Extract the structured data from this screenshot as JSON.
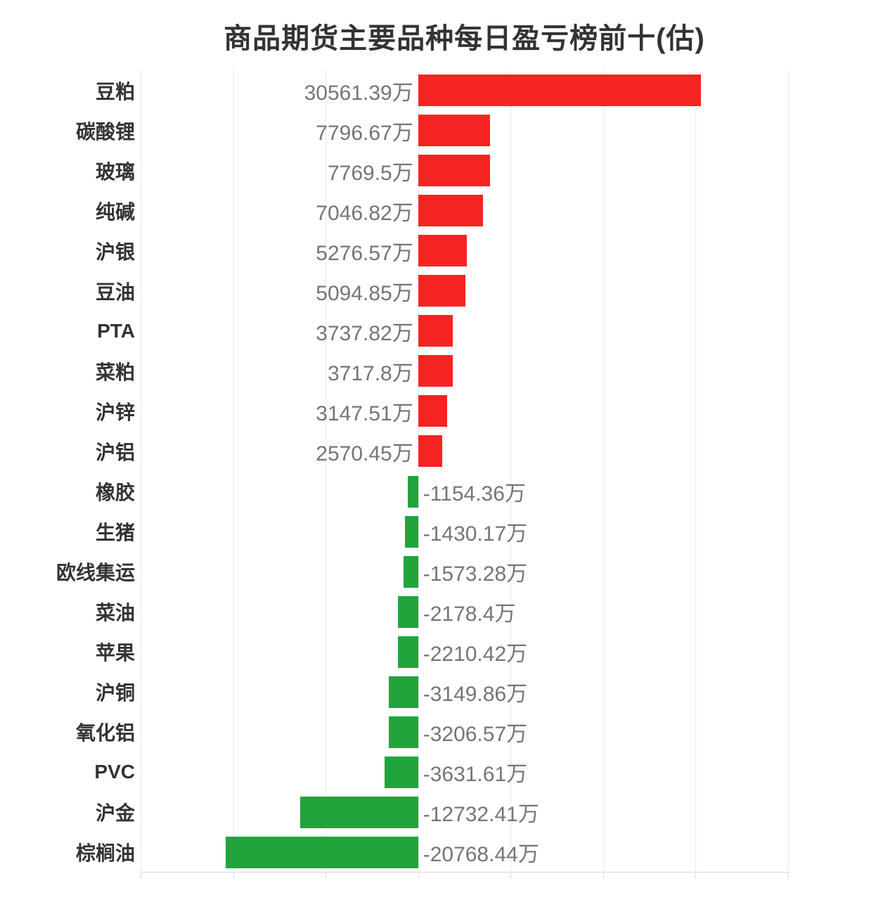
{
  "title": "商品期货主要品种每日盈亏榜前十(估)",
  "colors": {
    "positive_bar": "#f62323",
    "negative_bar": "#21a43c",
    "gridline": "#e9e9e9",
    "axis": "#d9d9d9",
    "category_label": "#333333",
    "value_label": "#757575",
    "title": "#333333",
    "background": "#ffffff"
  },
  "chart_data": {
    "type": "bar",
    "orientation": "horizontal",
    "title": "商品期货主要品种每日盈亏榜前十(估)",
    "unit": "万",
    "xlim": [
      -30000,
      40000
    ],
    "grid_interval": 10000,
    "grid": true,
    "x_axis_labels_visible": false,
    "categories": [
      "豆粕",
      "碳酸锂",
      "玻璃",
      "纯碱",
      "沪银",
      "豆油",
      "PTA",
      "菜粕",
      "沪锌",
      "沪铝",
      "橡胶",
      "生猪",
      "欧线集运",
      "菜油",
      "苹果",
      "沪铜",
      "氧化铝",
      "PVC",
      "沪金",
      "棕榈油"
    ],
    "values": [
      30561.39,
      7796.67,
      7769.5,
      7046.82,
      5276.57,
      5094.85,
      3737.82,
      3717.8,
      3147.51,
      2570.45,
      -1154.36,
      -1430.17,
      -1573.28,
      -2178.4,
      -2210.42,
      -3149.86,
      -3206.57,
      -3631.61,
      -12732.41,
      -20768.44
    ],
    "value_labels": [
      "30561.39万",
      "7796.67万",
      "7769.5万",
      "7046.82万",
      "5276.57万",
      "5094.85万",
      "3737.82万",
      "3717.8万",
      "3147.51万",
      "2570.45万",
      "-1154.36万",
      "-1430.17万",
      "-1573.28万",
      "-2178.4万",
      "-2210.42万",
      "-3149.86万",
      "-3206.57万",
      "-3631.61万",
      "-12732.41万",
      "-20768.44万"
    ]
  }
}
